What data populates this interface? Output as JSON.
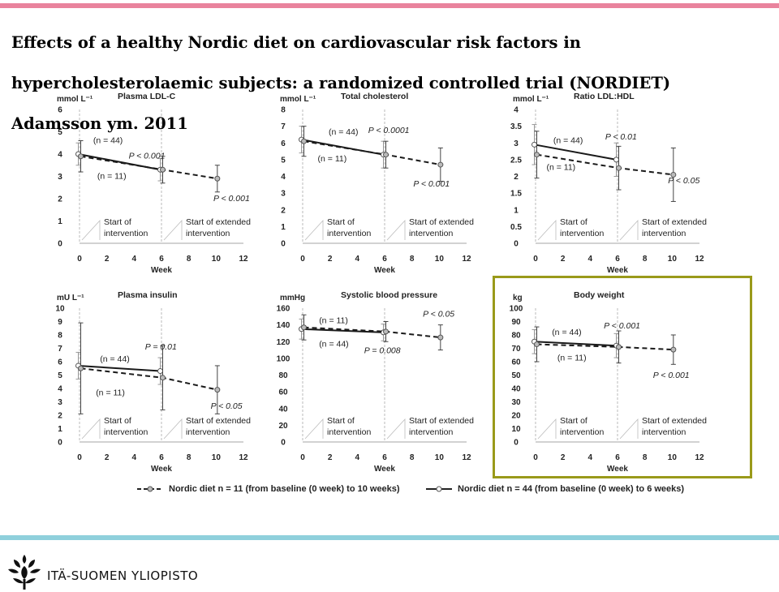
{
  "page": {
    "title": "Effects of a healthy Nordic diet on cardiovascular risk factors in hypercholesterolaemic subjects: a randomized controlled trial (NORDIET) Adamsson ym. 2011",
    "footer_org": "ITÄ-SUOMEN YLIOPISTO",
    "logo_icon": "university-logo-icon"
  },
  "colors": {
    "top_bar": "#e9839d",
    "bottom_bar": "#8fd0dc",
    "highlight_border": "#9a9a1a",
    "series": "#1a1a1a",
    "grid": "#bbbbbb"
  },
  "legend": {
    "dashed": "Nordic diet n = 11 (from baseline (0 week) to 10 weeks)",
    "solid": "Nordic diet n = 44 (from baseline (0 week) to 6 weeks)"
  },
  "chart_data": [
    {
      "type": "line",
      "title": "Plasma LDL-C",
      "unit": "mmol L⁻¹",
      "xlabel": "Week",
      "xlim": [
        0,
        12
      ],
      "xticks": [
        "0",
        "2",
        "4",
        "6",
        "8",
        "10",
        "12"
      ],
      "ylim": [
        0,
        6
      ],
      "yticks": [
        "0",
        "1",
        "2",
        "3",
        "4",
        "5",
        "6"
      ],
      "series": [
        {
          "name": "n = 44",
          "style": "solid",
          "x": [
            0,
            6
          ],
          "y": [
            4.0,
            3.3
          ],
          "err": [
            0.5,
            0.5
          ]
        },
        {
          "name": "n = 11",
          "style": "dashed",
          "x": [
            0,
            6,
            10
          ],
          "y": [
            3.9,
            3.3,
            2.9
          ],
          "err": [
            0.7,
            0.6,
            0.6
          ]
        }
      ],
      "annotations": [
        {
          "text": "(n = 44)",
          "x": 1.0,
          "y": 4.5
        },
        {
          "text": "P < 0.001",
          "x": 3.6,
          "y": 3.8
        },
        {
          "text": "(n = 11)",
          "x": 1.3,
          "y": 2.9
        },
        {
          "text": "P < 0.001",
          "x": 9.8,
          "y": 1.9
        }
      ],
      "markers": [
        {
          "label": [
            "Start of",
            "intervention"
          ],
          "x": 0
        },
        {
          "label": [
            "Start of extended",
            "intervention"
          ],
          "x": 6
        }
      ]
    },
    {
      "type": "line",
      "title": "Total cholesterol",
      "unit": "mmol L⁻¹",
      "xlabel": "Week",
      "xlim": [
        0,
        12
      ],
      "xticks": [
        "0",
        "2",
        "4",
        "6",
        "8",
        "10",
        "12"
      ],
      "ylim": [
        0,
        8
      ],
      "yticks": [
        "0",
        "1",
        "2",
        "3",
        "4",
        "5",
        "6",
        "7",
        "8"
      ],
      "series": [
        {
          "name": "n = 44",
          "style": "solid",
          "x": [
            0,
            6
          ],
          "y": [
            6.2,
            5.3
          ],
          "err": [
            0.8,
            0.8
          ]
        },
        {
          "name": "n = 11",
          "style": "dashed",
          "x": [
            0,
            6,
            10
          ],
          "y": [
            6.1,
            5.3,
            4.7
          ],
          "err": [
            0.9,
            0.8,
            1.0
          ]
        }
      ],
      "annotations": [
        {
          "text": "(n = 44)",
          "x": 1.9,
          "y": 6.5
        },
        {
          "text": "P < 0.0001",
          "x": 4.8,
          "y": 6.6
        },
        {
          "text": "(n = 11)",
          "x": 1.1,
          "y": 4.9
        },
        {
          "text": "P < 0.001",
          "x": 8.1,
          "y": 3.4
        }
      ],
      "markers": [
        {
          "label": [
            "Start of",
            "intervention"
          ],
          "x": 0
        },
        {
          "label": [
            "Start of extended",
            "intervention"
          ],
          "x": 6
        }
      ]
    },
    {
      "type": "line",
      "title": "Ratio LDL:HDL",
      "unit": "mmol L⁻¹",
      "xlabel": "Week",
      "xlim": [
        0,
        12
      ],
      "xticks": [
        "0",
        "2",
        "4",
        "6",
        "8",
        "10",
        "12"
      ],
      "ylim": [
        0,
        4
      ],
      "yticks": [
        "0",
        "0.5",
        "1",
        "1.5",
        "2",
        "2.5",
        "3",
        "3.5",
        "4"
      ],
      "series": [
        {
          "name": "n = 44",
          "style": "solid",
          "x": [
            0,
            6
          ],
          "y": [
            2.95,
            2.5
          ],
          "err": [
            0.6,
            0.5
          ]
        },
        {
          "name": "n = 11",
          "style": "dashed",
          "x": [
            0,
            6,
            10
          ],
          "y": [
            2.65,
            2.25,
            2.05
          ],
          "err": [
            0.7,
            0.65,
            0.8
          ]
        }
      ],
      "annotations": [
        {
          "text": "(n = 44)",
          "x": 1.3,
          "y": 3.0
        },
        {
          "text": "P < 0.01",
          "x": 5.1,
          "y": 3.1
        },
        {
          "text": "(n = 11)",
          "x": 0.8,
          "y": 2.2
        },
        {
          "text": "P < 0.05",
          "x": 9.7,
          "y": 1.8
        }
      ],
      "markers": [
        {
          "label": [
            "Start of",
            "intervention"
          ],
          "x": 0
        },
        {
          "label": [
            "Start of extended",
            "intervention"
          ],
          "x": 6
        }
      ]
    },
    {
      "type": "line",
      "title": "Plasma insulin",
      "unit": "mU L⁻¹",
      "xlabel": "Week",
      "xlim": [
        0,
        12
      ],
      "xticks": [
        "0",
        "2",
        "4",
        "6",
        "8",
        "10",
        "12"
      ],
      "ylim": [
        0,
        10
      ],
      "yticks": [
        "0",
        "1",
        "2",
        "3",
        "4",
        "5",
        "6",
        "7",
        "8",
        "9",
        "10"
      ],
      "series": [
        {
          "name": "n = 44",
          "style": "solid",
          "x": [
            0,
            6
          ],
          "y": [
            5.7,
            5.3
          ],
          "err": [
            1.0,
            1.0
          ]
        },
        {
          "name": "n = 11",
          "style": "dashed",
          "x": [
            0,
            6,
            10
          ],
          "y": [
            5.5,
            4.8,
            3.9
          ],
          "err": [
            3.4,
            2.4,
            1.8
          ]
        }
      ],
      "annotations": [
        {
          "text": "(n = 44)",
          "x": 1.5,
          "y": 6.0
        },
        {
          "text": "P = 0.01",
          "x": 4.8,
          "y": 6.9
        },
        {
          "text": "(n = 11)",
          "x": 1.2,
          "y": 3.5
        },
        {
          "text": "P < 0.05",
          "x": 9.6,
          "y": 2.5
        }
      ],
      "markers": [
        {
          "label": [
            "Start of",
            "intervention"
          ],
          "x": 0
        },
        {
          "label": [
            "Start of extended",
            "intervention"
          ],
          "x": 6
        }
      ]
    },
    {
      "type": "line",
      "title": "Systolic blood pressure",
      "unit": "mmHg",
      "xlabel": "Week",
      "xlim": [
        0,
        12
      ],
      "xticks": [
        "0",
        "2",
        "4",
        "6",
        "8",
        "10",
        "12"
      ],
      "ylim": [
        0,
        160
      ],
      "yticks": [
        "0",
        "20",
        "40",
        "60",
        "80",
        "100",
        "120",
        "140",
        "160"
      ],
      "series": [
        {
          "name": "n = 44",
          "style": "solid",
          "x": [
            0,
            6
          ],
          "y": [
            135,
            131
          ],
          "err": [
            12,
            10
          ]
        },
        {
          "name": "n = 11",
          "style": "dashed",
          "x": [
            0,
            6,
            10
          ],
          "y": [
            137,
            132,
            125
          ],
          "err": [
            15,
            12,
            15
          ]
        }
      ],
      "annotations": [
        {
          "text": "(n = 11)",
          "x": 1.2,
          "y": 142
        },
        {
          "text": "P < 0.05",
          "x": 8.8,
          "y": 150
        },
        {
          "text": "(n = 44)",
          "x": 1.2,
          "y": 114
        },
        {
          "text": "P = 0.008",
          "x": 4.5,
          "y": 106
        }
      ],
      "markers": [
        {
          "label": [
            "Start of",
            "intervention"
          ],
          "x": 0
        },
        {
          "label": [
            "Start of extended",
            "intervention"
          ],
          "x": 6
        }
      ]
    },
    {
      "type": "line",
      "title": "Body weight",
      "unit": "kg",
      "xlabel": "Week",
      "highlighted": true,
      "xlim": [
        0,
        12
      ],
      "xticks": [
        "0",
        "2",
        "4",
        "6",
        "8",
        "10",
        "12"
      ],
      "ylim": [
        0,
        100
      ],
      "yticks": [
        "0",
        "10",
        "20",
        "30",
        "40",
        "50",
        "60",
        "70",
        "80",
        "90",
        "100"
      ],
      "series": [
        {
          "name": "n = 44",
          "style": "solid",
          "x": [
            0,
            6
          ],
          "y": [
            75,
            72
          ],
          "err": [
            9,
            9
          ]
        },
        {
          "name": "n = 11",
          "style": "dashed",
          "x": [
            0,
            6,
            10
          ],
          "y": [
            73,
            71,
            69
          ],
          "err": [
            13,
            12,
            11
          ]
        }
      ],
      "annotations": [
        {
          "text": "(n = 44)",
          "x": 1.2,
          "y": 80
        },
        {
          "text": "P < 0.001",
          "x": 5.0,
          "y": 85
        },
        {
          "text": "(n = 11)",
          "x": 1.6,
          "y": 61
        },
        {
          "text": "P < 0.001",
          "x": 8.6,
          "y": 48
        }
      ],
      "markers": [
        {
          "label": [
            "Start of",
            "intervention"
          ],
          "x": 0
        },
        {
          "label": [
            "Start of extended",
            "intervention"
          ],
          "x": 6
        }
      ]
    }
  ]
}
